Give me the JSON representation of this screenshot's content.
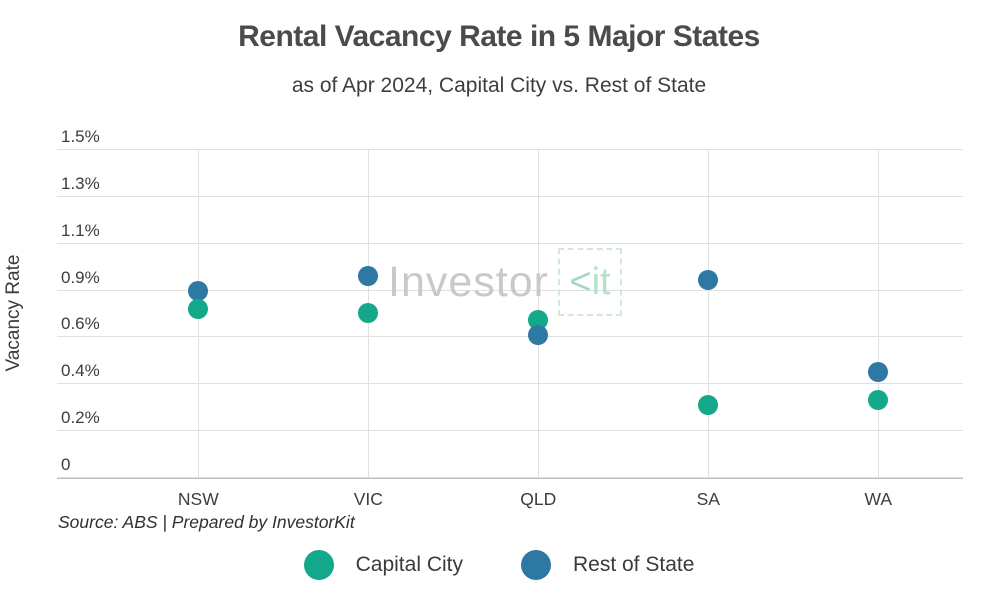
{
  "header": {
    "title": "Rental Vacancy Rate in 5 Major States",
    "subtitle": "as of Apr 2024, Capital City vs. Rest of State"
  },
  "source_note": "Source: ABS | Prepared by InvestorKit",
  "watermark": {
    "text_gray": "Investor",
    "text_green_k": "<",
    "text_green_it": "it"
  },
  "colors": {
    "capital_city": "#14a88a",
    "rest_of_state": "#2e79a3",
    "gridline": "#e0e0e0",
    "axis_line": "#bfbfbf",
    "title_text": "#4b4b4b",
    "tick_text": "#3d3d3d",
    "watermark_gray": "#c9c9c9",
    "watermark_green": "#b7e0cb"
  },
  "legend": [
    {
      "label": "Capital City",
      "series_index": 0
    },
    {
      "label": "Rest of State",
      "series_index": 1
    }
  ],
  "chart_data": {
    "type": "scatter",
    "title": "Rental Vacancy Rate in 5 Major States",
    "subtitle": "as of Apr 2024, Capital City vs. Rest of State",
    "categories": [
      "NSW",
      "VIC",
      "QLD",
      "SA",
      "WA"
    ],
    "series": [
      {
        "name": "Capital City",
        "color_key": "capital_city",
        "values": [
          0.77,
          0.75,
          0.72,
          0.33,
          0.35
        ]
      },
      {
        "name": "Rest of State",
        "color_key": "rest_of_state",
        "values": [
          0.85,
          0.92,
          0.65,
          0.9,
          0.48
        ]
      }
    ],
    "xlabel": "",
    "ylabel": "Vacancy Rate",
    "ylim": [
      0,
      1.5
    ],
    "y_ticks": [
      {
        "value": 1.5,
        "label": "1.5%"
      },
      {
        "value": 1.2857,
        "label": "1.3%"
      },
      {
        "value": 1.0714,
        "label": "1.1%"
      },
      {
        "value": 0.8571,
        "label": "0.9%"
      },
      {
        "value": 0.6429,
        "label": "0.6%"
      },
      {
        "value": 0.4286,
        "label": "0.4%"
      },
      {
        "value": 0.2143,
        "label": "0.2%"
      },
      {
        "value": 0,
        "label": "0"
      }
    ],
    "grid": true,
    "legend_position": "bottom"
  }
}
